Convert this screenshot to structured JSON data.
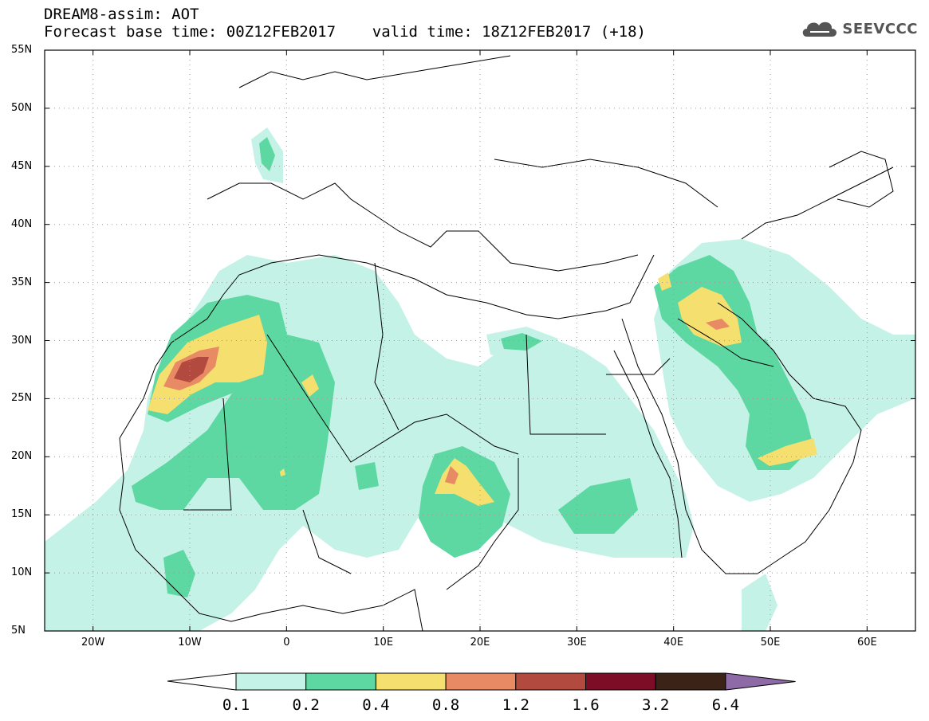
{
  "header": {
    "line1": "DREAM8-assim: AOT",
    "line2": "Forecast base time: 00Z12FEB2017    valid time: 18Z12FEB2017 (+18)"
  },
  "logo": {
    "text": "SEEVCCC",
    "icon": "cloud-icon"
  },
  "map_extent": {
    "lon": [
      -25,
      65
    ],
    "lat": [
      5,
      55
    ]
  },
  "lat_labels": [
    "55N",
    "50N",
    "45N",
    "40N",
    "35N",
    "30N",
    "25N",
    "20N",
    "15N",
    "10N",
    "5N"
  ],
  "lat_values": [
    55,
    50,
    45,
    40,
    35,
    30,
    25,
    20,
    15,
    10,
    5
  ],
  "lon_labels": [
    "20W",
    "10W",
    "0",
    "10E",
    "20E",
    "30E",
    "40E",
    "50E",
    "60E"
  ],
  "lon_values": [
    -20,
    -10,
    0,
    10,
    20,
    30,
    40,
    50,
    60
  ],
  "colorbar": {
    "levels": [
      "0.1",
      "0.2",
      "0.4",
      "0.8",
      "1.2",
      "1.6",
      "3.2",
      "6.4"
    ],
    "colors": [
      "#c5f2e6",
      "#5dd8a2",
      "#f5df6e",
      "#e88a63",
      "#b34a3f",
      "#7d0c26",
      "#3b2417",
      "#8e6aa6"
    ]
  },
  "palette": {
    "c1": "#c5f2e6",
    "c2": "#5dd8a2",
    "c3": "#f5df6e",
    "c4": "#e88a63",
    "c5": "#b34a3f"
  }
}
